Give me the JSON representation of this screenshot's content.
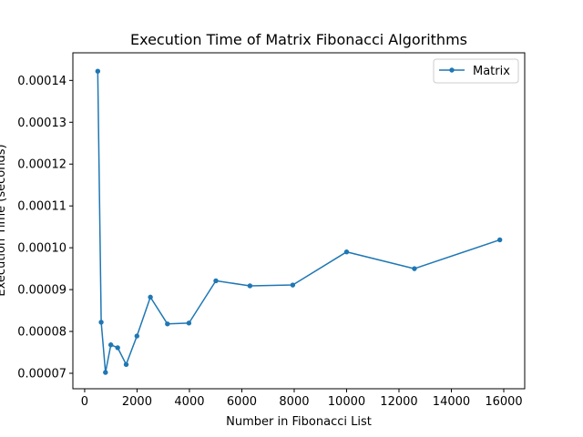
{
  "chart_data": {
    "type": "line",
    "title": "Execution Time of Matrix Fibonacci Algorithms",
    "xlabel": "Number in Fibonacci List",
    "ylabel": "Execution Time (seconds)",
    "xlim": [
      -450,
      16800
    ],
    "ylim": [
      6.63e-05,
      0.0001466
    ],
    "xticks": [
      0,
      2000,
      4000,
      6000,
      8000,
      10000,
      12000,
      14000,
      16000
    ],
    "xtick_labels": [
      "0",
      "2000",
      "4000",
      "6000",
      "8000",
      "10000",
      "12000",
      "14000",
      "16000"
    ],
    "yticks": [
      7e-05,
      8e-05,
      9e-05,
      0.0001,
      0.00011,
      0.00012,
      0.00013,
      0.00014
    ],
    "ytick_labels": [
      "0.00007",
      "0.00008",
      "0.00009",
      "0.00010",
      "0.00011",
      "0.00012",
      "0.00013",
      "0.00014"
    ],
    "grid": false,
    "legend_position": "top-right",
    "series": [
      {
        "name": "Matrix",
        "color": "#1f77b4",
        "marker": "circle",
        "x": [
          500,
          630,
          795,
          1000,
          1260,
          1585,
          1995,
          2510,
          3160,
          3980,
          5010,
          6310,
          7945,
          10000,
          12590,
          15850
        ],
        "y": [
          0.0001422,
          8.22e-05,
          7.02e-05,
          7.68e-05,
          7.61e-05,
          7.21e-05,
          7.89e-05,
          8.82e-05,
          8.18e-05,
          8.2e-05,
          9.21e-05,
          9.09e-05,
          9.11e-05,
          9.9e-05,
          9.5e-05,
          0.0001019
        ]
      }
    ]
  }
}
